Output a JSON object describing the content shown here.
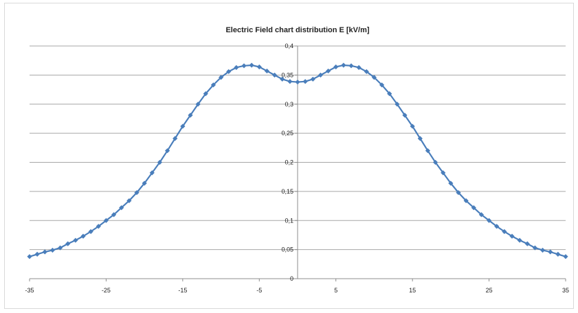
{
  "chart_data": {
    "type": "line",
    "title": "Electric Field chart distribution E [kV/m]",
    "xlabel": "",
    "ylabel": "",
    "xlim": [
      -35,
      35
    ],
    "ylim": [
      0,
      0.4
    ],
    "x_ticks": [
      -35,
      -25,
      -15,
      -5,
      5,
      15,
      25,
      35
    ],
    "x_tick_labels": [
      "-35",
      "-25",
      "-15",
      "-5",
      "5",
      "15",
      "25",
      "35"
    ],
    "y_ticks": [
      0,
      0.05,
      0.1,
      0.15,
      0.2,
      0.25,
      0.3,
      0.35,
      0.4
    ],
    "y_tick_labels": [
      "0",
      "0,05",
      "0,1",
      "0,15",
      "0,2",
      "0,25",
      "0,3",
      "0,35",
      "0,4"
    ],
    "grid": "horizontal",
    "legend": "none",
    "series": [
      {
        "color": "#4a7ebb",
        "marker": "diamond",
        "x": [
          -35,
          -34,
          -33,
          -32,
          -31,
          -30,
          -29,
          -28,
          -27,
          -26,
          -25,
          -24,
          -23,
          -22,
          -21,
          -20,
          -19,
          -18,
          -17,
          -16,
          -15,
          -14,
          -13,
          -12,
          -11,
          -10,
          -9,
          -8,
          -7,
          -6,
          -5,
          -4,
          -3,
          -2,
          -1,
          0,
          1,
          2,
          3,
          4,
          5,
          6,
          7,
          8,
          9,
          10,
          11,
          12,
          13,
          14,
          15,
          16,
          17,
          18,
          19,
          20,
          21,
          22,
          23,
          24,
          25,
          26,
          27,
          28,
          29,
          30,
          31,
          32,
          33,
          34,
          35
        ],
        "y": [
          0.038,
          0.042,
          0.046,
          0.049,
          0.053,
          0.06,
          0.066,
          0.073,
          0.081,
          0.09,
          0.1,
          0.11,
          0.122,
          0.134,
          0.148,
          0.164,
          0.182,
          0.2,
          0.22,
          0.241,
          0.262,
          0.281,
          0.3,
          0.318,
          0.333,
          0.346,
          0.356,
          0.363,
          0.366,
          0.367,
          0.364,
          0.357,
          0.35,
          0.343,
          0.339,
          0.338,
          0.339,
          0.343,
          0.35,
          0.357,
          0.364,
          0.367,
          0.366,
          0.363,
          0.356,
          0.346,
          0.333,
          0.318,
          0.3,
          0.281,
          0.262,
          0.241,
          0.22,
          0.2,
          0.182,
          0.164,
          0.148,
          0.134,
          0.122,
          0.11,
          0.1,
          0.09,
          0.081,
          0.073,
          0.066,
          0.06,
          0.053,
          0.049,
          0.046,
          0.042,
          0.038
        ]
      }
    ]
  }
}
